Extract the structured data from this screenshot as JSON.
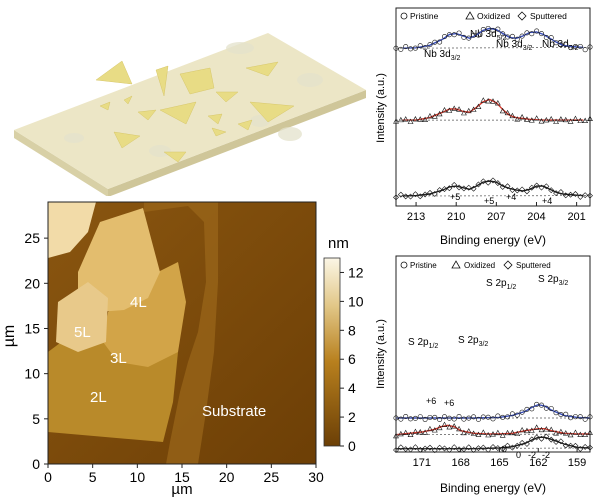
{
  "afm": {
    "y_axis_label": "µm",
    "x_axis_label": "µm",
    "x_ticks": [
      "0",
      "5",
      "10",
      "15",
      "20",
      "25",
      "30"
    ],
    "y_ticks": [
      "0",
      "5",
      "10",
      "15",
      "20",
      "25"
    ],
    "colorbar_unit": "nm",
    "colorbar_ticks": [
      "0",
      "2",
      "4",
      "6",
      "8",
      "10",
      "12"
    ],
    "region_labels": [
      "4L",
      "5L",
      "3L",
      "2L",
      "Substrate"
    ]
  },
  "xps_nb": {
    "legend": [
      "Pristine",
      "Oxidized",
      "Sputtered"
    ],
    "peak_labels": [
      "Nb 3d",
      "3/2",
      "Nb 3d",
      "5/2",
      "Nb 3d",
      "3/2",
      "Nb 3d",
      "5/2"
    ],
    "oxidation_labels": [
      "+5",
      "+5",
      "+4",
      "+4"
    ],
    "y_axis_label": "Intensity (a.u.)",
    "x_axis_label": "Binding energy (eV)",
    "x_ticks": [
      "213",
      "210",
      "207",
      "204",
      "201"
    ]
  },
  "xps_s": {
    "legend": [
      "Pristine",
      "Oxidized",
      "Sputtered"
    ],
    "peak_labels_top": [
      "S 2p",
      "1/2",
      "S 2p",
      "3/2"
    ],
    "peak_labels_mid": [
      "S 2p",
      "1/2",
      "S 2p",
      "3/2"
    ],
    "oxidation_labels": [
      "+6",
      "+6",
      "0",
      "0",
      "-2",
      "-2"
    ],
    "y_axis_label": "Intensity (a.u.)",
    "x_axis_label": "Binding energy (eV)",
    "x_ticks": [
      "171",
      "168",
      "165",
      "162",
      "159"
    ]
  },
  "colors": {
    "afm_dark": "#6b3f06",
    "afm_mid": "#b8801e",
    "afm_light": "#e2c889",
    "fit_blue": "#3a4fb8",
    "fit_red": "#d23a2e",
    "substrate": "#ece6c6",
    "flake": "#e8dc85"
  },
  "chart_data": [
    {
      "type": "line",
      "title": "",
      "xlabel": "Binding energy (eV)",
      "ylabel": "Intensity (a.u.)",
      "xlim": [
        214.5,
        200
      ],
      "x_ticks": [
        213,
        210,
        207,
        204,
        201
      ],
      "series": [
        {
          "name": "Pristine",
          "x": [
            214,
            213,
            212,
            211,
            210.5,
            210,
            209.5,
            209,
            208.5,
            208,
            207.5,
            207,
            206.5,
            206,
            205.5,
            205,
            204.5,
            204,
            203.5,
            203,
            202.5,
            202,
            201,
            200.5
          ],
          "values": [
            0.55,
            0.56,
            0.62,
            0.78,
            0.9,
            0.92,
            0.86,
            0.8,
            0.88,
            1.0,
            1.05,
            1.02,
            0.92,
            0.82,
            0.8,
            0.86,
            0.95,
            0.96,
            0.9,
            0.8,
            0.7,
            0.62,
            0.58,
            0.57
          ]
        },
        {
          "name": "Oxidized",
          "x": [
            214,
            213,
            212,
            211,
            210.5,
            210,
            209.5,
            209,
            208.5,
            208,
            207.5,
            207,
            206.5,
            206,
            205.5,
            205,
            204.5,
            204,
            203.5,
            203,
            202.5,
            202,
            201,
            200.5
          ],
          "values": [
            0.3,
            0.3,
            0.36,
            0.5,
            0.58,
            0.58,
            0.52,
            0.5,
            0.62,
            0.76,
            0.82,
            0.74,
            0.56,
            0.42,
            0.36,
            0.34,
            0.32,
            0.31,
            0.3,
            0.3,
            0.3,
            0.3,
            0.3,
            0.3
          ]
        },
        {
          "name": "Sputtered",
          "x": [
            214,
            213,
            212,
            211,
            210.5,
            210,
            209.5,
            209,
            208.5,
            208,
            207.5,
            207,
            206.5,
            206,
            205.5,
            205,
            204.5,
            204,
            203.5,
            203,
            202.5,
            202,
            201,
            200.5
          ],
          "values": [
            0.05,
            0.06,
            0.1,
            0.2,
            0.28,
            0.3,
            0.26,
            0.22,
            0.3,
            0.4,
            0.43,
            0.4,
            0.3,
            0.24,
            0.2,
            0.18,
            0.22,
            0.3,
            0.3,
            0.22,
            0.14,
            0.1,
            0.07,
            0.06
          ]
        }
      ]
    },
    {
      "type": "line",
      "title": "",
      "xlabel": "Binding energy (eV)",
      "ylabel": "Intensity (a.u.)",
      "xlim": [
        173,
        158
      ],
      "x_ticks": [
        171,
        168,
        165,
        162,
        159
      ],
      "series": [
        {
          "name": "Pristine",
          "x": [
            173,
            171,
            169,
            167,
            165,
            164,
            163,
            162.5,
            162,
            161.5,
            161,
            160,
            159,
            158
          ],
          "values": [
            0.78,
            0.78,
            0.78,
            0.78,
            0.79,
            0.82,
            0.88,
            0.94,
            0.98,
            0.96,
            0.9,
            0.82,
            0.79,
            0.78
          ]
        },
        {
          "name": "Oxidized",
          "x": [
            173,
            171,
            170,
            169.5,
            169,
            168.5,
            168,
            167,
            166,
            165,
            164,
            163,
            162,
            161.5,
            161,
            160,
            159,
            158
          ],
          "values": [
            0.44,
            0.48,
            0.52,
            0.56,
            0.58,
            0.56,
            0.5,
            0.46,
            0.45,
            0.45,
            0.46,
            0.5,
            0.53,
            0.53,
            0.5,
            0.46,
            0.45,
            0.45
          ]
        },
        {
          "name": "Sputtered",
          "x": [
            173,
            171,
            169,
            167,
            165,
            164,
            163,
            162.5,
            162,
            161.5,
            161,
            160,
            159,
            158
          ],
          "values": [
            0.05,
            0.05,
            0.05,
            0.05,
            0.06,
            0.08,
            0.13,
            0.18,
            0.22,
            0.22,
            0.19,
            0.12,
            0.07,
            0.06
          ]
        }
      ]
    }
  ]
}
